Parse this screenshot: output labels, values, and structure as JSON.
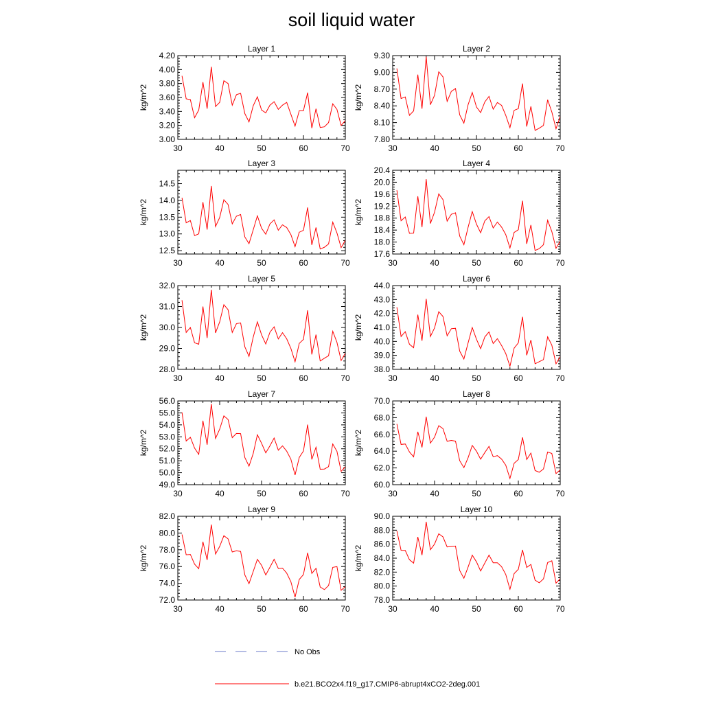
{
  "page": {
    "title": "soil liquid water"
  },
  "legend": [
    {
      "label": "No Obs",
      "color": "#6a78c9",
      "dash": true
    },
    {
      "label": "b.e21.BCO2x4.f19_g17.CMIP6-abrupt4xCO2-2deg.001",
      "color": "#ff0000",
      "dash": false
    }
  ],
  "chart_data": [
    {
      "type": "line",
      "title": "Layer 1",
      "ylabel": "kg/m^2",
      "xlim": [
        30,
        70
      ],
      "ylim": [
        3.0,
        4.2
      ],
      "xticks": [
        "30",
        "40",
        "50",
        "60",
        "70"
      ],
      "yticks": [
        "3.00",
        "3.20",
        "3.40",
        "3.60",
        "3.80",
        "4.00",
        "4.20"
      ],
      "color": "#ff0000",
      "x": [
        31,
        32,
        33,
        34,
        35,
        36,
        37,
        38,
        39,
        40,
        41,
        42,
        43,
        44,
        45,
        46,
        47,
        48,
        49,
        50,
        51,
        52,
        53,
        54,
        55,
        56,
        57,
        58,
        59,
        60,
        61,
        62,
        63,
        64,
        65,
        66,
        67,
        68,
        69,
        70
      ],
      "values": [
        3.91,
        3.58,
        3.57,
        3.31,
        3.42,
        3.82,
        3.44,
        4.04,
        3.47,
        3.53,
        3.84,
        3.8,
        3.49,
        3.64,
        3.66,
        3.37,
        3.25,
        3.48,
        3.61,
        3.42,
        3.38,
        3.49,
        3.54,
        3.43,
        3.49,
        3.53,
        3.36,
        3.19,
        3.41,
        3.41,
        3.67,
        3.16,
        3.44,
        3.17,
        3.18,
        3.24,
        3.51,
        3.43,
        3.2,
        3.27
      ]
    },
    {
      "type": "line",
      "title": "Layer 2",
      "ylabel": "kg/m^2",
      "xlim": [
        30,
        70
      ],
      "ylim": [
        7.8,
        9.3
      ],
      "xticks": [
        "30",
        "40",
        "50",
        "60",
        "70"
      ],
      "yticks": [
        "7.80",
        "8.10",
        "8.40",
        "8.70",
        "9.00",
        "9.30"
      ],
      "color": "#ff0000",
      "x": [
        31,
        32,
        33,
        34,
        35,
        36,
        37,
        38,
        39,
        40,
        41,
        42,
        43,
        44,
        45,
        46,
        47,
        48,
        49,
        50,
        51,
        52,
        53,
        54,
        55,
        56,
        57,
        58,
        59,
        60,
        61,
        62,
        63,
        64,
        65,
        66,
        67,
        68,
        69,
        70
      ],
      "values": [
        9.07,
        8.53,
        8.56,
        8.23,
        8.31,
        8.96,
        8.35,
        9.28,
        8.42,
        8.59,
        9.01,
        8.92,
        8.48,
        8.66,
        8.71,
        8.24,
        8.09,
        8.42,
        8.64,
        8.38,
        8.28,
        8.47,
        8.57,
        8.34,
        8.46,
        8.41,
        8.23,
        8.01,
        8.32,
        8.35,
        8.8,
        8.03,
        8.39,
        7.96,
        8.0,
        8.05,
        8.51,
        8.29,
        7.99,
        8.21
      ]
    },
    {
      "type": "line",
      "title": "Layer 3",
      "ylabel": "kg/m^2",
      "xlim": [
        30,
        70
      ],
      "ylim": [
        12.4,
        14.9
      ],
      "xticks": [
        "30",
        "40",
        "50",
        "60",
        "70"
      ],
      "yticks": [
        "12.5",
        "13.0",
        "13.5",
        "14.0",
        "14.5"
      ],
      "color": "#ff0000",
      "x": [
        31,
        32,
        33,
        34,
        35,
        36,
        37,
        38,
        39,
        40,
        41,
        42,
        43,
        44,
        45,
        46,
        47,
        48,
        49,
        50,
        51,
        52,
        53,
        54,
        55,
        56,
        57,
        58,
        59,
        60,
        61,
        62,
        63,
        64,
        65,
        66,
        67,
        68,
        69,
        70
      ],
      "values": [
        14.08,
        13.33,
        13.4,
        12.95,
        13.0,
        13.95,
        13.13,
        14.43,
        13.22,
        13.49,
        14.02,
        13.88,
        13.3,
        13.53,
        13.58,
        12.91,
        12.71,
        13.12,
        13.54,
        13.17,
        12.99,
        13.3,
        13.42,
        13.11,
        13.27,
        13.19,
        12.98,
        12.62,
        13.05,
        13.11,
        13.79,
        12.67,
        13.19,
        12.55,
        12.6,
        12.7,
        13.35,
        13.03,
        12.59,
        12.81
      ]
    },
    {
      "type": "line",
      "title": "Layer 4",
      "ylabel": "kg/m^2",
      "xlim": [
        30,
        70
      ],
      "ylim": [
        17.6,
        20.4
      ],
      "xticks": [
        "30",
        "40",
        "50",
        "60",
        "70"
      ],
      "yticks": [
        "17.6",
        "18.0",
        "18.4",
        "18.8",
        "19.2",
        "19.6",
        "20.0",
        "20.4"
      ],
      "color": "#ff0000",
      "x": [
        31,
        32,
        33,
        34,
        35,
        36,
        37,
        38,
        39,
        40,
        41,
        42,
        43,
        44,
        45,
        46,
        47,
        48,
        49,
        50,
        51,
        52,
        53,
        54,
        55,
        56,
        57,
        58,
        59,
        60,
        61,
        62,
        63,
        64,
        65,
        66,
        67,
        68,
        69,
        70
      ],
      "values": [
        19.73,
        18.71,
        18.84,
        18.29,
        18.3,
        19.53,
        18.5,
        20.1,
        18.62,
        19.0,
        19.61,
        19.42,
        18.7,
        18.93,
        18.98,
        18.2,
        17.91,
        18.49,
        19.02,
        18.6,
        18.31,
        18.71,
        18.85,
        18.47,
        18.67,
        18.5,
        18.25,
        17.8,
        18.32,
        18.41,
        19.38,
        17.94,
        18.57,
        17.72,
        17.78,
        17.91,
        18.73,
        18.35,
        17.79,
        18.03
      ]
    },
    {
      "type": "line",
      "title": "Layer 5",
      "ylabel": "kg/m^2",
      "xlim": [
        30,
        70
      ],
      "ylim": [
        28.0,
        32.0
      ],
      "xticks": [
        "30",
        "40",
        "50",
        "60",
        "70"
      ],
      "yticks": [
        "28.0",
        "29.0",
        "30.0",
        "31.0",
        "32.0"
      ],
      "color": "#ff0000",
      "x": [
        31,
        32,
        33,
        34,
        35,
        36,
        37,
        38,
        39,
        40,
        41,
        42,
        43,
        44,
        45,
        46,
        47,
        48,
        49,
        50,
        51,
        52,
        53,
        54,
        55,
        56,
        57,
        58,
        59,
        60,
        61,
        62,
        63,
        64,
        65,
        66,
        67,
        68,
        69,
        70
      ],
      "values": [
        31.3,
        29.76,
        30.0,
        29.27,
        29.2,
        31.0,
        29.5,
        31.8,
        29.74,
        30.27,
        31.09,
        30.85,
        29.76,
        30.18,
        30.22,
        29.08,
        28.62,
        29.53,
        30.27,
        29.65,
        29.21,
        29.77,
        30.03,
        29.45,
        29.75,
        29.46,
        29.0,
        28.36,
        29.24,
        29.43,
        30.82,
        28.71,
        29.66,
        28.4,
        28.53,
        28.65,
        29.82,
        29.29,
        28.42,
        28.77
      ]
    },
    {
      "type": "line",
      "title": "Layer 6",
      "ylabel": "kg/m^2",
      "xlim": [
        30,
        70
      ],
      "ylim": [
        38.0,
        44.0
      ],
      "xticks": [
        "30",
        "40",
        "50",
        "60",
        "70"
      ],
      "yticks": [
        "38.0",
        "39.0",
        "40.0",
        "41.0",
        "42.0",
        "43.0",
        "44.0"
      ],
      "color": "#ff0000",
      "x": [
        31,
        32,
        33,
        34,
        35,
        36,
        37,
        38,
        39,
        40,
        41,
        42,
        43,
        44,
        45,
        46,
        47,
        48,
        49,
        50,
        51,
        52,
        53,
        54,
        55,
        56,
        57,
        58,
        59,
        60,
        61,
        62,
        63,
        64,
        65,
        66,
        67,
        68,
        69,
        70
      ],
      "values": [
        42.45,
        40.35,
        40.7,
        39.8,
        39.55,
        41.92,
        40.05,
        43.05,
        40.35,
        40.97,
        42.13,
        41.79,
        40.4,
        40.91,
        40.94,
        39.31,
        38.74,
        39.89,
        41.0,
        40.16,
        39.48,
        40.32,
        40.68,
        39.85,
        40.2,
        39.71,
        39.13,
        38.22,
        39.52,
        39.9,
        41.76,
        39.01,
        40.1,
        38.4,
        38.55,
        38.7,
        40.33,
        39.73,
        38.4,
        38.91
      ]
    },
    {
      "type": "line",
      "title": "Layer 7",
      "ylabel": "kg/m^2",
      "xlim": [
        30,
        70
      ],
      "ylim": [
        49.0,
        56.0
      ],
      "xticks": [
        "30",
        "40",
        "50",
        "60",
        "70"
      ],
      "yticks": [
        "49.0",
        "50.0",
        "51.0",
        "52.0",
        "53.0",
        "54.0",
        "55.0",
        "56.0"
      ],
      "color": "#ff0000",
      "x": [
        31,
        32,
        33,
        34,
        35,
        36,
        37,
        38,
        39,
        40,
        41,
        42,
        43,
        44,
        45,
        46,
        47,
        48,
        49,
        50,
        51,
        52,
        53,
        54,
        55,
        56,
        57,
        58,
        59,
        60,
        61,
        62,
        63,
        64,
        65,
        66,
        67,
        68,
        69,
        70
      ],
      "values": [
        55.04,
        52.65,
        52.96,
        52.06,
        51.53,
        54.35,
        52.34,
        55.75,
        52.86,
        53.64,
        54.75,
        54.45,
        52.93,
        53.28,
        53.27,
        51.27,
        50.55,
        51.6,
        53.17,
        52.46,
        51.66,
        52.25,
        52.9,
        51.88,
        52.24,
        51.8,
        51.13,
        49.81,
        51.28,
        51.81,
        54.02,
        51.11,
        52.13,
        50.29,
        50.31,
        50.51,
        52.4,
        51.79,
        50.11,
        50.51
      ]
    },
    {
      "type": "line",
      "title": "Layer 8",
      "ylabel": "kg/m^2",
      "xlim": [
        30,
        70
      ],
      "ylim": [
        60.0,
        70.0
      ],
      "xticks": [
        "30",
        "40",
        "50",
        "60",
        "70"
      ],
      "yticks": [
        "60.0",
        "62.0",
        "64.0",
        "66.0",
        "68.0",
        "70.0"
      ],
      "color": "#ff0000",
      "x": [
        31,
        32,
        33,
        34,
        35,
        36,
        37,
        38,
        39,
        40,
        41,
        42,
        43,
        44,
        45,
        46,
        47,
        48,
        49,
        50,
        51,
        52,
        53,
        54,
        55,
        56,
        57,
        58,
        59,
        60,
        61,
        62,
        63,
        64,
        65,
        66,
        67,
        68,
        69,
        70
      ],
      "values": [
        67.25,
        64.8,
        64.86,
        63.91,
        63.32,
        66.32,
        64.45,
        68.12,
        64.96,
        65.68,
        67.05,
        66.7,
        65.18,
        65.29,
        65.2,
        62.87,
        62.03,
        63.21,
        64.69,
        64.0,
        63.04,
        63.84,
        64.57,
        63.34,
        63.47,
        63.06,
        62.33,
        60.74,
        62.56,
        63.0,
        65.65,
        63.01,
        63.77,
        61.69,
        61.48,
        61.88,
        63.9,
        63.73,
        61.33,
        61.77
      ]
    },
    {
      "type": "line",
      "title": "Layer 9",
      "ylabel": "kg/m^2",
      "xlim": [
        30,
        70
      ],
      "ylim": [
        72.0,
        82.0
      ],
      "xticks": [
        "30",
        "40",
        "50",
        "60",
        "70"
      ],
      "yticks": [
        "72.0",
        "74.0",
        "76.0",
        "78.0",
        "80.0",
        "82.0"
      ],
      "color": "#ff0000",
      "x": [
        31,
        32,
        33,
        34,
        35,
        36,
        37,
        38,
        39,
        40,
        41,
        42,
        43,
        44,
        45,
        46,
        47,
        48,
        49,
        50,
        51,
        52,
        53,
        54,
        55,
        56,
        57,
        58,
        59,
        60,
        61,
        62,
        63,
        64,
        65,
        66,
        67,
        68,
        69,
        70
      ],
      "values": [
        79.83,
        77.4,
        77.44,
        76.29,
        75.74,
        78.96,
        76.78,
        81.0,
        77.48,
        78.4,
        79.68,
        79.3,
        77.74,
        77.88,
        77.8,
        75.0,
        73.95,
        75.4,
        76.86,
        76.14,
        74.99,
        75.92,
        76.87,
        75.76,
        75.8,
        75.21,
        74.18,
        72.34,
        74.46,
        75.04,
        77.64,
        75.18,
        75.78,
        73.56,
        73.25,
        73.73,
        75.9,
        75.99,
        73.16,
        73.6
      ]
    },
    {
      "type": "line",
      "title": "Layer 10",
      "ylabel": "kg/m^2",
      "xlim": [
        30,
        70
      ],
      "ylim": [
        78.0,
        90.0
      ],
      "xticks": [
        "30",
        "40",
        "50",
        "60",
        "70"
      ],
      "yticks": [
        "78.0",
        "80.0",
        "82.0",
        "84.0",
        "86.0",
        "88.0",
        "90.0"
      ],
      "color": "#ff0000",
      "x": [
        31,
        32,
        33,
        34,
        35,
        36,
        37,
        38,
        39,
        40,
        41,
        42,
        43,
        44,
        45,
        46,
        47,
        48,
        49,
        50,
        51,
        52,
        53,
        54,
        55,
        56,
        57,
        58,
        59,
        60,
        61,
        62,
        63,
        64,
        65,
        66,
        67,
        68,
        69,
        70
      ],
      "values": [
        87.9,
        85.12,
        85.1,
        83.77,
        83.28,
        87.04,
        84.43,
        89.2,
        85.21,
        86.02,
        87.49,
        87.05,
        85.6,
        85.67,
        85.73,
        82.23,
        81.12,
        82.71,
        84.42,
        83.48,
        82.16,
        83.3,
        84.43,
        83.34,
        83.33,
        82.78,
        81.66,
        79.53,
        81.79,
        82.41,
        85.18,
        82.67,
        83.1,
        80.85,
        80.47,
        81.03,
        83.37,
        83.63,
        80.42,
        81.05
      ]
    }
  ]
}
